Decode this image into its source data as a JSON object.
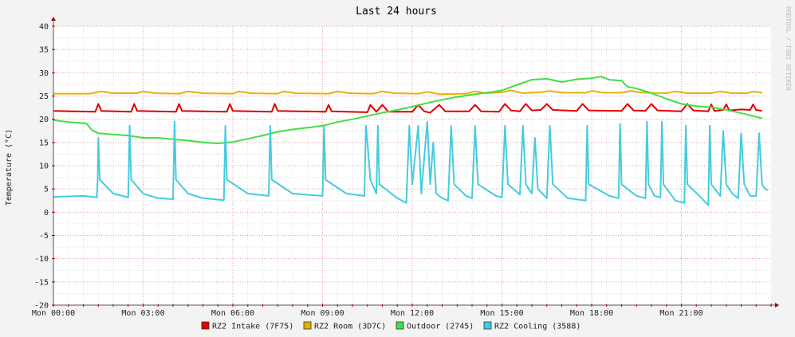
{
  "chart_data": {
    "type": "line",
    "title": "Last 24 hours",
    "ylabel": "Temperature (°C)",
    "xlabel": "",
    "watermark": "RRDTOOL / TOBI OETIKER",
    "x_range_hours": [
      0,
      24
    ],
    "ylim": [
      -20,
      40
    ],
    "yticks": [
      40,
      35,
      30,
      25,
      20,
      15,
      10,
      5,
      0,
      -5,
      -10,
      -15,
      -20
    ],
    "xticks": [
      {
        "hour": 0,
        "label": "Mon 00:00"
      },
      {
        "hour": 3,
        "label": "Mon 03:00"
      },
      {
        "hour": 6,
        "label": "Mon 06:00"
      },
      {
        "hour": 9,
        "label": "Mon 09:00"
      },
      {
        "hour": 12,
        "label": "Mon 12:00"
      },
      {
        "hour": 15,
        "label": "Mon 15:00"
      },
      {
        "hour": 18,
        "label": "Mon 18:00"
      },
      {
        "hour": 21,
        "label": "Mon 21:00"
      }
    ],
    "grid": true,
    "legend_position": "bottom",
    "series": [
      {
        "name": "RZ2 Intake (7F75)",
        "color": "#e00000",
        "points": [
          [
            0.0,
            21.8
          ],
          [
            1.4,
            21.6
          ],
          [
            1.5,
            23.3
          ],
          [
            1.6,
            21.8
          ],
          [
            2.6,
            21.6
          ],
          [
            2.7,
            23.3
          ],
          [
            2.8,
            21.8
          ],
          [
            4.1,
            21.6
          ],
          [
            4.2,
            23.3
          ],
          [
            4.3,
            21.8
          ],
          [
            5.8,
            21.6
          ],
          [
            5.9,
            23.3
          ],
          [
            6.0,
            21.8
          ],
          [
            7.3,
            21.6
          ],
          [
            7.4,
            23.3
          ],
          [
            7.5,
            21.8
          ],
          [
            9.1,
            21.6
          ],
          [
            9.2,
            23.1
          ],
          [
            9.3,
            21.7
          ],
          [
            10.5,
            21.5
          ],
          [
            10.6,
            23.1
          ],
          [
            10.8,
            21.6
          ],
          [
            11.0,
            23.1
          ],
          [
            11.2,
            21.6
          ],
          [
            12.0,
            21.6
          ],
          [
            12.2,
            23.1
          ],
          [
            12.4,
            21.7
          ],
          [
            12.6,
            21.4
          ],
          [
            12.9,
            23.1
          ],
          [
            13.1,
            21.7
          ],
          [
            13.9,
            21.7
          ],
          [
            14.1,
            23.1
          ],
          [
            14.3,
            21.7
          ],
          [
            14.9,
            21.6
          ],
          [
            15.1,
            23.3
          ],
          [
            15.3,
            21.9
          ],
          [
            15.6,
            21.7
          ],
          [
            15.8,
            23.3
          ],
          [
            16.0,
            21.9
          ],
          [
            16.3,
            22.0
          ],
          [
            16.5,
            23.3
          ],
          [
            16.7,
            22.0
          ],
          [
            17.5,
            21.8
          ],
          [
            17.7,
            23.3
          ],
          [
            17.9,
            21.9
          ],
          [
            19.0,
            21.8
          ],
          [
            19.2,
            23.3
          ],
          [
            19.4,
            21.9
          ],
          [
            19.8,
            21.8
          ],
          [
            20.0,
            23.3
          ],
          [
            20.2,
            21.9
          ],
          [
            21.0,
            21.7
          ],
          [
            21.2,
            23.3
          ],
          [
            21.4,
            21.9
          ],
          [
            21.9,
            21.7
          ],
          [
            22.0,
            23.2
          ],
          [
            22.1,
            21.8
          ],
          [
            22.4,
            22.0
          ],
          [
            22.5,
            23.2
          ],
          [
            22.6,
            21.9
          ],
          [
            23.0,
            22.1
          ],
          [
            23.3,
            22.0
          ],
          [
            23.4,
            23.2
          ],
          [
            23.5,
            22.0
          ],
          [
            23.7,
            21.8
          ]
        ]
      },
      {
        "name": "RZ2 Room (3D7C)",
        "color": "#e8b000",
        "points": [
          [
            0.0,
            25.5
          ],
          [
            1.2,
            25.5
          ],
          [
            1.6,
            26.0
          ],
          [
            2.0,
            25.6
          ],
          [
            2.8,
            25.6
          ],
          [
            3.0,
            26.0
          ],
          [
            3.4,
            25.6
          ],
          [
            4.2,
            25.5
          ],
          [
            4.5,
            26.0
          ],
          [
            5.0,
            25.6
          ],
          [
            6.0,
            25.5
          ],
          [
            6.2,
            26.0
          ],
          [
            6.6,
            25.6
          ],
          [
            7.5,
            25.5
          ],
          [
            7.7,
            26.0
          ],
          [
            8.1,
            25.6
          ],
          [
            9.2,
            25.5
          ],
          [
            9.5,
            26.0
          ],
          [
            9.9,
            25.6
          ],
          [
            10.7,
            25.5
          ],
          [
            11.0,
            26.0
          ],
          [
            11.4,
            25.6
          ],
          [
            12.2,
            25.5
          ],
          [
            12.5,
            25.9
          ],
          [
            12.9,
            25.4
          ],
          [
            13.8,
            25.5
          ],
          [
            14.1,
            26.0
          ],
          [
            14.5,
            25.6
          ],
          [
            15.0,
            25.8
          ],
          [
            15.3,
            26.2
          ],
          [
            15.7,
            25.6
          ],
          [
            16.3,
            25.8
          ],
          [
            16.6,
            26.1
          ],
          [
            17.0,
            25.7
          ],
          [
            17.8,
            25.7
          ],
          [
            18.0,
            26.1
          ],
          [
            18.4,
            25.7
          ],
          [
            19.0,
            25.7
          ],
          [
            19.3,
            26.1
          ],
          [
            19.7,
            25.7
          ],
          [
            20.5,
            25.6
          ],
          [
            20.8,
            26.0
          ],
          [
            21.2,
            25.6
          ],
          [
            22.0,
            25.6
          ],
          [
            22.3,
            26.0
          ],
          [
            22.7,
            25.6
          ],
          [
            23.2,
            25.6
          ],
          [
            23.4,
            26.0
          ],
          [
            23.7,
            25.7
          ]
        ]
      },
      {
        "name": "Outdoor (2745)",
        "color": "#44dd44",
        "points": [
          [
            0.0,
            19.8
          ],
          [
            0.5,
            19.4
          ],
          [
            1.1,
            19.1
          ],
          [
            1.3,
            17.6
          ],
          [
            1.5,
            17.0
          ],
          [
            2.0,
            16.7
          ],
          [
            2.5,
            16.5
          ],
          [
            3.0,
            16.0
          ],
          [
            3.5,
            16.0
          ],
          [
            4.0,
            15.7
          ],
          [
            4.5,
            15.4
          ],
          [
            5.0,
            15.0
          ],
          [
            5.5,
            14.8
          ],
          [
            6.0,
            15.1
          ],
          [
            6.5,
            15.8
          ],
          [
            7.0,
            16.5
          ],
          [
            7.5,
            17.3
          ],
          [
            8.0,
            17.8
          ],
          [
            8.5,
            18.2
          ],
          [
            9.0,
            18.6
          ],
          [
            9.5,
            19.4
          ],
          [
            10.0,
            20.0
          ],
          [
            10.5,
            20.7
          ],
          [
            11.0,
            21.4
          ],
          [
            11.5,
            22.0
          ],
          [
            12.0,
            22.7
          ],
          [
            12.5,
            23.5
          ],
          [
            13.0,
            24.2
          ],
          [
            13.5,
            24.8
          ],
          [
            14.0,
            25.3
          ],
          [
            14.5,
            25.7
          ],
          [
            15.0,
            26.2
          ],
          [
            15.5,
            27.4
          ],
          [
            16.0,
            28.5
          ],
          [
            16.5,
            28.7
          ],
          [
            17.0,
            28.0
          ],
          [
            17.5,
            28.6
          ],
          [
            18.0,
            28.8
          ],
          [
            18.3,
            29.2
          ],
          [
            18.6,
            28.5
          ],
          [
            19.0,
            28.3
          ],
          [
            19.2,
            27.0
          ],
          [
            19.5,
            26.6
          ],
          [
            20.0,
            25.6
          ],
          [
            20.5,
            24.4
          ],
          [
            21.0,
            23.3
          ],
          [
            21.5,
            22.8
          ],
          [
            22.0,
            22.6
          ],
          [
            22.5,
            22.0
          ],
          [
            22.8,
            21.6
          ],
          [
            23.2,
            21.0
          ],
          [
            23.5,
            20.5
          ],
          [
            23.7,
            20.2
          ]
        ]
      },
      {
        "name": "RZ2 Cooling (3588)",
        "color": "#44ccdd",
        "points": [
          [
            0.0,
            3.3
          ],
          [
            1.0,
            3.5
          ],
          [
            1.45,
            3.2
          ],
          [
            1.48,
            7.0
          ],
          [
            1.5,
            16.0
          ],
          [
            1.55,
            7.0
          ],
          [
            2.0,
            4.0
          ],
          [
            2.5,
            3.2
          ],
          [
            2.55,
            18.6
          ],
          [
            2.6,
            7.0
          ],
          [
            3.0,
            4.0
          ],
          [
            3.5,
            3.0
          ],
          [
            4.0,
            2.8
          ],
          [
            4.05,
            19.5
          ],
          [
            4.1,
            7.0
          ],
          [
            4.5,
            4.0
          ],
          [
            5.0,
            3.0
          ],
          [
            5.7,
            2.6
          ],
          [
            5.75,
            18.6
          ],
          [
            5.8,
            7.0
          ],
          [
            6.5,
            4.0
          ],
          [
            7.2,
            3.5
          ],
          [
            7.25,
            18.6
          ],
          [
            7.3,
            7.0
          ],
          [
            8.0,
            4.0
          ],
          [
            9.0,
            3.5
          ],
          [
            9.05,
            18.6
          ],
          [
            9.1,
            7.0
          ],
          [
            9.8,
            4.0
          ],
          [
            10.4,
            3.5
          ],
          [
            10.45,
            18.6
          ],
          [
            10.5,
            15.0
          ],
          [
            10.6,
            7.0
          ],
          [
            10.8,
            4.0
          ],
          [
            10.85,
            18.6
          ],
          [
            10.9,
            6.0
          ],
          [
            11.5,
            3.0
          ],
          [
            11.8,
            2.0
          ],
          [
            11.9,
            18.6
          ],
          [
            12.0,
            6.0
          ],
          [
            12.2,
            18.6
          ],
          [
            12.3,
            4.0
          ],
          [
            12.5,
            19.5
          ],
          [
            12.6,
            6.0
          ],
          [
            12.7,
            15.0
          ],
          [
            12.8,
            4.0
          ],
          [
            13.0,
            3.0
          ],
          [
            13.2,
            2.5
          ],
          [
            13.3,
            18.6
          ],
          [
            13.4,
            6.0
          ],
          [
            13.8,
            3.5
          ],
          [
            14.0,
            3.0
          ],
          [
            14.1,
            18.6
          ],
          [
            14.2,
            6.0
          ],
          [
            14.8,
            3.5
          ],
          [
            15.0,
            3.2
          ],
          [
            15.1,
            18.6
          ],
          [
            15.2,
            6.0
          ],
          [
            15.6,
            3.8
          ],
          [
            15.7,
            18.6
          ],
          [
            15.8,
            6.0
          ],
          [
            16.0,
            4.0
          ],
          [
            16.1,
            16.0
          ],
          [
            16.2,
            5.0
          ],
          [
            16.5,
            3.0
          ],
          [
            16.6,
            18.6
          ],
          [
            16.7,
            6.0
          ],
          [
            17.2,
            3.0
          ],
          [
            17.8,
            2.5
          ],
          [
            17.85,
            18.6
          ],
          [
            17.9,
            6.0
          ],
          [
            18.6,
            3.5
          ],
          [
            18.9,
            3.0
          ],
          [
            18.95,
            19.0
          ],
          [
            19.0,
            6.0
          ],
          [
            19.5,
            3.5
          ],
          [
            19.8,
            3.0
          ],
          [
            19.85,
            19.5
          ],
          [
            19.9,
            6.0
          ],
          [
            20.1,
            3.5
          ],
          [
            20.3,
            3.2
          ],
          [
            20.35,
            19.5
          ],
          [
            20.4,
            6.0
          ],
          [
            20.8,
            2.5
          ],
          [
            21.1,
            2.0
          ],
          [
            21.15,
            18.6
          ],
          [
            21.2,
            6.0
          ],
          [
            21.6,
            3.5
          ],
          [
            21.9,
            1.5
          ],
          [
            21.95,
            18.6
          ],
          [
            22.0,
            6.0
          ],
          [
            22.3,
            3.5
          ],
          [
            22.4,
            17.5
          ],
          [
            22.5,
            6.0
          ],
          [
            22.7,
            4.0
          ],
          [
            22.9,
            3.0
          ],
          [
            23.0,
            17.0
          ],
          [
            23.1,
            6.0
          ],
          [
            23.3,
            3.5
          ],
          [
            23.5,
            3.5
          ],
          [
            23.6,
            17.0
          ],
          [
            23.7,
            6.0
          ],
          [
            23.8,
            5.0
          ],
          [
            23.9,
            4.7
          ]
        ]
      }
    ]
  }
}
